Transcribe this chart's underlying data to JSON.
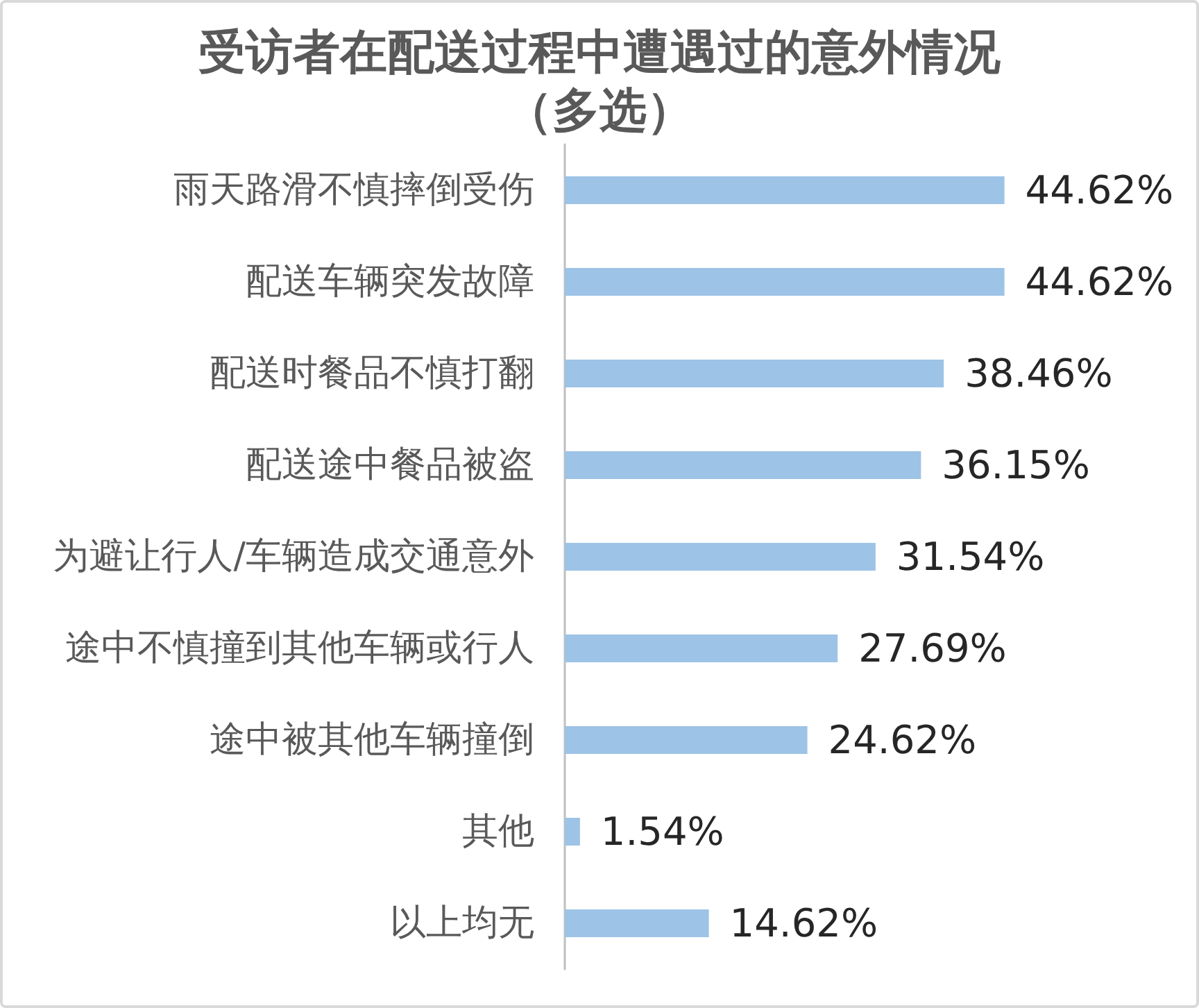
{
  "chart_data": {
    "type": "bar",
    "orientation": "horizontal",
    "title": "受访者在配送过程中遭遇过的意外情况（多选）",
    "categories": [
      "雨天路滑不慎摔倒受伤",
      "配送车辆突发故障",
      "配送时餐品不慎打翻",
      "配送途中餐品被盗",
      "为避让行人/车辆造成交通意外",
      "途中不慎撞到其他车辆或行人",
      "途中被其他车辆撞倒",
      "其他",
      "以上均无"
    ],
    "values": [
      44.62,
      44.62,
      38.46,
      36.15,
      31.54,
      27.69,
      24.62,
      1.54,
      14.62
    ],
    "value_labels": [
      "44.62%",
      "44.62%",
      "38.46%",
      "36.15%",
      "31.54%",
      "27.69%",
      "24.62%",
      "1.54%",
      "14.62%"
    ],
    "color": "#9dc3e6",
    "tick_labels": "y"
  }
}
